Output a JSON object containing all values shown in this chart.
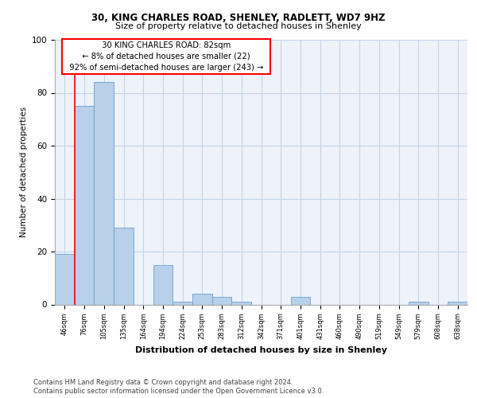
{
  "title1": "30, KING CHARLES ROAD, SHENLEY, RADLETT, WD7 9HZ",
  "title2": "Size of property relative to detached houses in Shenley",
  "xlabel": "Distribution of detached houses by size in Shenley",
  "ylabel": "Number of detached properties",
  "categories": [
    "46sqm",
    "76sqm",
    "105sqm",
    "135sqm",
    "164sqm",
    "194sqm",
    "224sqm",
    "253sqm",
    "283sqm",
    "312sqm",
    "342sqm",
    "371sqm",
    "401sqm",
    "431sqm",
    "460sqm",
    "490sqm",
    "519sqm",
    "549sqm",
    "579sqm",
    "608sqm",
    "638sqm"
  ],
  "values": [
    19,
    75,
    84,
    29,
    0,
    15,
    1,
    4,
    3,
    1,
    0,
    0,
    3,
    0,
    0,
    0,
    0,
    0,
    1,
    0,
    1
  ],
  "bar_color": "#b8d0ea",
  "bar_edge_color": "#6a9fcf",
  "red_line_x": 0.5,
  "annotation_text": "  30 KING CHARLES ROAD: 82sqm  \n  ← 8% of detached houses are smaller (22)  \n  92% of semi-detached houses are larger (243) →  ",
  "footer1": "Contains HM Land Registry data © Crown copyright and database right 2024.",
  "footer2": "Contains public sector information licensed under the Open Government Licence v3.0.",
  "ylim": [
    0,
    100
  ],
  "background_color": "#eef2f9",
  "grid_color": "#c5d5e8"
}
